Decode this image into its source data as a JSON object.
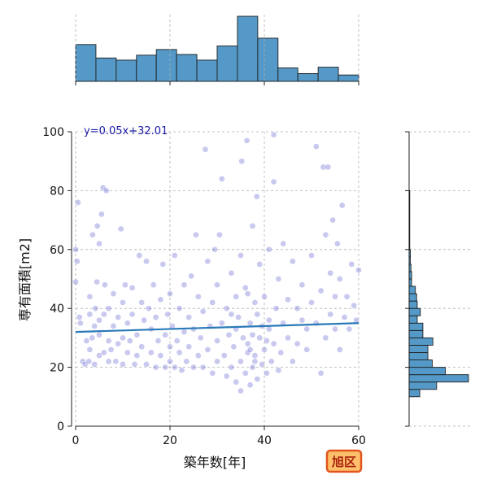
{
  "chart_data": {
    "type": "scatter",
    "xlabel": "築年数[年]",
    "ylabel": "専有面積[m2]",
    "xlim": [
      0,
      60
    ],
    "ylim": [
      0,
      100
    ],
    "x_ticks": [
      "0",
      "20",
      "40",
      "60"
    ],
    "y_ticks": [
      "0",
      "20",
      "40",
      "60",
      "80",
      "100"
    ],
    "grid": true,
    "point_color": "#3c3cc8",
    "line_color": "#2a7ab8",
    "hist_color": "#5499c7",
    "regression": {
      "slope": 0.05,
      "intercept": 32.01,
      "label": "y=0.05x+32.01"
    },
    "badge": {
      "label": "旭区",
      "bg": "#ffbf6b",
      "border": "#e2561d"
    },
    "marginal_x_hist": {
      "bin_edges": [
        0,
        4.3,
        8.6,
        12.9,
        17.1,
        21.4,
        25.7,
        30.0,
        34.3,
        38.6,
        42.9,
        47.1,
        51.4,
        55.7,
        60
      ],
      "counts": [
        52,
        33,
        30,
        37,
        45,
        38,
        30,
        50,
        92,
        61,
        19,
        11,
        20,
        9
      ]
    },
    "marginal_y_hist": {
      "bin_edges": [
        10,
        12.5,
        15,
        17.5,
        20,
        22.5,
        25,
        27.5,
        30,
        32.5,
        35,
        37.5,
        40,
        42.5,
        45,
        47.5,
        50,
        52.5,
        55,
        57.5,
        60,
        62.5,
        65,
        67.5,
        70,
        72.5,
        75,
        77.5,
        80
      ],
      "counts": [
        17,
        44,
        95,
        58,
        37,
        30,
        30,
        38,
        22,
        22,
        13,
        18,
        13,
        12,
        10,
        4,
        4,
        3,
        2,
        2,
        1,
        1,
        1,
        1,
        1,
        1,
        1,
        1
      ]
    },
    "points": [
      [
        0,
        49
      ],
      [
        0,
        60
      ],
      [
        0.3,
        56
      ],
      [
        0.5,
        76
      ],
      [
        0.8,
        37
      ],
      [
        1,
        35
      ],
      [
        1.5,
        22
      ],
      [
        2,
        21
      ],
      [
        2.3,
        29
      ],
      [
        2.8,
        22
      ],
      [
        3,
        26
      ],
      [
        3,
        38
      ],
      [
        3,
        44
      ],
      [
        3.5,
        30
      ],
      [
        3.6,
        65
      ],
      [
        4,
        21
      ],
      [
        4,
        34
      ],
      [
        4.2,
        40
      ],
      [
        4.5,
        49
      ],
      [
        4.6,
        68
      ],
      [
        5,
        24
      ],
      [
        5,
        31
      ],
      [
        5,
        36
      ],
      [
        5,
        62
      ],
      [
        5.5,
        72
      ],
      [
        5.8,
        81
      ],
      [
        6,
        25
      ],
      [
        6,
        38
      ],
      [
        6.2,
        48
      ],
      [
        6.5,
        80
      ],
      [
        7,
        22
      ],
      [
        7,
        29
      ],
      [
        7,
        40
      ],
      [
        7.5,
        26
      ],
      [
        8,
        34
      ],
      [
        8,
        45
      ],
      [
        8.5,
        22
      ],
      [
        9,
        28
      ],
      [
        9,
        37
      ],
      [
        9.6,
        67
      ],
      [
        10,
        21
      ],
      [
        10,
        30
      ],
      [
        10,
        42
      ],
      [
        10.5,
        48
      ],
      [
        11,
        25
      ],
      [
        11,
        35
      ],
      [
        11.5,
        29
      ],
      [
        12,
        38
      ],
      [
        12,
        47
      ],
      [
        12.5,
        21
      ],
      [
        13,
        24
      ],
      [
        13,
        31
      ],
      [
        13.5,
        58
      ],
      [
        14,
        27
      ],
      [
        14,
        42
      ],
      [
        14.5,
        36
      ],
      [
        15,
        21
      ],
      [
        15,
        56
      ],
      [
        15.5,
        40
      ],
      [
        16,
        25
      ],
      [
        16,
        33
      ],
      [
        16.5,
        48
      ],
      [
        17,
        20
      ],
      [
        17,
        37
      ],
      [
        17.5,
        29
      ],
      [
        18,
        24
      ],
      [
        18,
        43
      ],
      [
        18.5,
        55
      ],
      [
        19,
        31
      ],
      [
        19,
        20
      ],
      [
        19.5,
        38
      ],
      [
        20,
        22
      ],
      [
        20,
        27
      ],
      [
        20,
        45
      ],
      [
        20.5,
        34
      ],
      [
        21,
        20
      ],
      [
        21,
        58
      ],
      [
        21.5,
        29
      ],
      [
        22,
        40
      ],
      [
        22,
        25
      ],
      [
        22.5,
        19
      ],
      [
        23,
        32
      ],
      [
        23,
        48
      ],
      [
        23.5,
        22
      ],
      [
        24,
        37
      ],
      [
        24,
        27
      ],
      [
        24.5,
        51
      ],
      [
        25,
        20
      ],
      [
        25,
        33
      ],
      [
        25.5,
        65
      ],
      [
        26,
        24
      ],
      [
        26,
        44
      ],
      [
        26.5,
        30
      ],
      [
        27,
        20
      ],
      [
        27,
        39
      ],
      [
        27.5,
        94
      ],
      [
        28,
        26
      ],
      [
        28,
        56
      ],
      [
        28.5,
        34
      ],
      [
        29,
        18
      ],
      [
        29,
        42
      ],
      [
        29.5,
        60
      ],
      [
        30,
        22
      ],
      [
        30,
        29
      ],
      [
        30,
        48
      ],
      [
        30.5,
        65
      ],
      [
        31,
        84
      ],
      [
        31,
        35
      ],
      [
        31.5,
        24
      ],
      [
        32,
        17
      ],
      [
        32,
        40
      ],
      [
        32.5,
        31
      ],
      [
        33,
        20
      ],
      [
        33,
        52
      ],
      [
        33.5,
        27
      ],
      [
        34,
        15
      ],
      [
        34,
        44
      ],
      [
        34.5,
        37
      ],
      [
        35,
        12
      ],
      [
        35,
        22
      ],
      [
        35,
        58
      ],
      [
        35.2,
        90
      ],
      [
        35.5,
        30
      ],
      [
        36,
        18
      ],
      [
        36,
        47
      ],
      [
        36.3,
        97
      ],
      [
        36.5,
        25
      ],
      [
        37,
        14
      ],
      [
        37,
        35
      ],
      [
        37.5,
        20
      ],
      [
        37.5,
        68
      ],
      [
        38,
        24
      ],
      [
        38,
        42
      ],
      [
        38.4,
        78
      ],
      [
        38.5,
        16
      ],
      [
        39,
        30
      ],
      [
        39,
        55
      ],
      [
        39.5,
        21
      ],
      [
        40,
        26
      ],
      [
        40,
        44
      ],
      [
        40.5,
        18
      ],
      [
        41,
        33
      ],
      [
        41,
        60
      ],
      [
        41.5,
        22
      ],
      [
        42,
        99
      ],
      [
        42,
        28
      ],
      [
        42,
        83
      ],
      [
        42.5,
        40
      ],
      [
        43,
        19
      ],
      [
        43,
        50
      ],
      [
        43.5,
        25
      ],
      [
        44,
        35
      ],
      [
        44,
        62
      ],
      [
        45,
        30
      ],
      [
        45,
        43
      ],
      [
        46,
        22
      ],
      [
        46,
        56
      ],
      [
        47,
        40
      ],
      [
        47,
        28
      ],
      [
        48,
        36
      ],
      [
        48,
        48
      ],
      [
        49,
        26
      ],
      [
        49,
        33
      ],
      [
        50,
        42
      ],
      [
        50,
        58
      ],
      [
        51,
        35
      ],
      [
        51,
        95
      ],
      [
        52,
        18
      ],
      [
        52,
        46
      ],
      [
        52.5,
        88
      ],
      [
        53,
        30
      ],
      [
        53,
        65
      ],
      [
        53.5,
        88
      ],
      [
        54,
        52
      ],
      [
        54,
        38
      ],
      [
        54.5,
        70
      ],
      [
        55,
        44
      ],
      [
        55,
        33
      ],
      [
        55.5,
        62
      ],
      [
        56,
        26
      ],
      [
        56,
        50
      ],
      [
        56.5,
        75
      ],
      [
        57,
        37
      ],
      [
        57.5,
        44
      ],
      [
        58,
        33
      ],
      [
        58.5,
        55
      ],
      [
        59,
        41
      ],
      [
        59.5,
        36
      ],
      [
        60,
        53
      ],
      [
        36.5,
        28
      ],
      [
        37.5,
        31
      ],
      [
        38.5,
        38
      ],
      [
        39.5,
        34
      ],
      [
        40.5,
        29
      ],
      [
        36.5,
        45
      ],
      [
        34,
        33
      ],
      [
        33,
        38
      ],
      [
        41,
        36
      ],
      [
        37,
        26
      ],
      [
        38,
        22
      ]
    ]
  }
}
